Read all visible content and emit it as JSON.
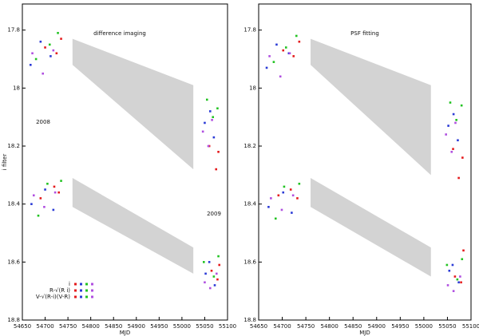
{
  "chart_data": [
    {
      "type": "scatter",
      "xlabel": "MJD",
      "ylabel": "i filter",
      "annotations": [
        "difference imaging",
        "2008",
        "2009"
      ],
      "xlim": [
        54650,
        55100
      ],
      "xticks": [
        54650,
        54700,
        54750,
        54800,
        54850,
        54900,
        54950,
        55000,
        55050,
        55100
      ],
      "ylim": [
        17.71,
        18.8
      ],
      "yticks": [
        17.8,
        18,
        18.2,
        18.4,
        18.6,
        18.8
      ],
      "yinverted": true,
      "bands": [
        {
          "x": [
            54760,
            55025,
            55025,
            54760
          ],
          "y": [
            17.83,
            17.99,
            18.28,
            17.92
          ]
        },
        {
          "x": [
            54760,
            55025,
            55025,
            54760
          ],
          "y": [
            18.31,
            18.55,
            18.64,
            18.41
          ]
        }
      ],
      "band_color": "#d3d3d3",
      "legend": [
        "i",
        "R-√(R i)",
        "V-√(R-i)(V-R)"
      ],
      "series": [
        {
          "color": "#e41a1c",
          "x": [
            54700,
            54725,
            54735,
            55060,
            55075,
            55080,
            54690,
            54720,
            54730,
            55065,
            55078,
            55082
          ],
          "y": [
            17.86,
            17.88,
            17.83,
            18.2,
            18.28,
            18.22,
            18.38,
            18.34,
            18.36,
            18.63,
            18.66,
            18.61
          ]
        },
        {
          "color": "#2b3bd6",
          "x": [
            54668,
            54690,
            54712,
            55050,
            55062,
            55070,
            54670,
            54700,
            54718,
            55052,
            55060,
            55072
          ],
          "y": [
            17.92,
            17.84,
            17.89,
            18.12,
            18.08,
            18.17,
            18.4,
            18.35,
            18.42,
            18.64,
            18.6,
            18.68
          ]
        },
        {
          "color": "#22c322",
          "x": [
            54680,
            54710,
            54728,
            55055,
            55068,
            55078,
            54685,
            54705,
            54735,
            55048,
            55070,
            55080
          ],
          "y": [
            17.9,
            17.85,
            17.81,
            18.04,
            18.1,
            18.07,
            18.44,
            18.33,
            18.32,
            18.6,
            18.65,
            18.58
          ]
        },
        {
          "color": "#b04fe0",
          "x": [
            54672,
            54695,
            54718,
            55046,
            55058,
            55066,
            54675,
            54698,
            54722,
            55050,
            55062,
            55076
          ],
          "y": [
            17.88,
            17.95,
            17.87,
            18.15,
            18.2,
            18.11,
            18.37,
            18.41,
            18.36,
            18.67,
            18.69,
            18.64
          ]
        }
      ]
    },
    {
      "type": "scatter",
      "xlabel": "MJD",
      "annotations": [
        "PSF fitting"
      ],
      "xlim": [
        54650,
        55100
      ],
      "xticks": [
        54650,
        54700,
        54750,
        54800,
        54850,
        54900,
        54950,
        55000,
        55050,
        55100
      ],
      "ylim": [
        17.71,
        18.8
      ],
      "yticks": [
        17.8,
        18,
        18.2,
        18.4,
        18.6,
        18.8
      ],
      "yinverted": true,
      "bands": [
        {
          "x": [
            54760,
            55015,
            55015,
            54760
          ],
          "y": [
            17.83,
            17.99,
            18.3,
            17.92
          ]
        },
        {
          "x": [
            54760,
            55015,
            55015,
            54760
          ],
          "y": [
            18.31,
            18.55,
            18.65,
            18.41
          ]
        }
      ],
      "band_color": "#d3d3d3",
      "series": [
        {
          "color": "#e41a1c",
          "x": [
            54702,
            54724,
            54736,
            55062,
            55074,
            55082,
            54692,
            54718,
            54732,
            55066,
            55079,
            55084
          ],
          "y": [
            17.87,
            17.89,
            17.84,
            18.21,
            18.31,
            18.24,
            18.37,
            18.35,
            18.38,
            18.65,
            18.67,
            18.56
          ]
        },
        {
          "color": "#2b3bd6",
          "x": [
            54667,
            54688,
            54714,
            55052,
            55063,
            55072,
            54671,
            54702,
            54720,
            55054,
            55061,
            55074
          ],
          "y": [
            17.93,
            17.85,
            17.88,
            18.13,
            18.09,
            18.18,
            18.41,
            18.36,
            18.43,
            18.63,
            18.61,
            18.67
          ]
        },
        {
          "color": "#22c322",
          "x": [
            54682,
            54708,
            54730,
            55056,
            55069,
            55080,
            54686,
            54704,
            54736,
            55049,
            55071,
            55081
          ],
          "y": [
            17.91,
            17.86,
            17.82,
            18.05,
            18.11,
            18.06,
            18.45,
            18.34,
            18.33,
            18.61,
            18.66,
            18.59
          ]
        },
        {
          "color": "#b04fe0",
          "x": [
            54673,
            54696,
            54716,
            55047,
            55059,
            55067,
            54676,
            54699,
            54723,
            55051,
            55063,
            55077
          ],
          "y": [
            17.89,
            17.96,
            17.88,
            18.16,
            18.22,
            18.12,
            18.38,
            18.42,
            18.37,
            18.68,
            18.7,
            18.65
          ]
        }
      ]
    }
  ]
}
